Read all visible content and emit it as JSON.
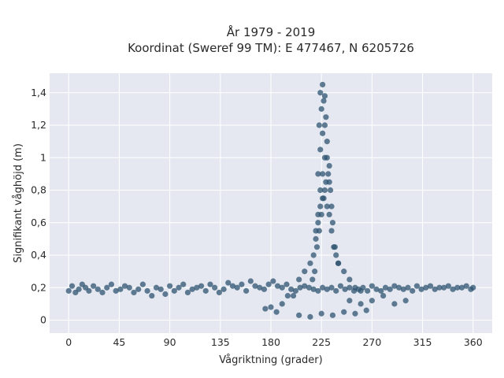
{
  "chart_data": {
    "type": "scatter",
    "title_lines": [
      "År 1979 - 2019",
      "Koordinat (Sweref 99 TM): E 477467, N 6205726"
    ],
    "xlabel": "Vågriktning (grader)",
    "ylabel": "Signifikant våghöjd (m)",
    "xlim": [
      -17,
      377
    ],
    "ylim": [
      -0.08,
      1.52
    ],
    "x_ticks": [
      0,
      45,
      90,
      135,
      180,
      225,
      270,
      315,
      360
    ],
    "x_tick_labels": [
      "0",
      "45",
      "90",
      "135",
      "180",
      "225",
      "270",
      "315",
      "360"
    ],
    "y_ticks": [
      0,
      0.2,
      0.4,
      0.6,
      0.8,
      1.0,
      1.2,
      1.4
    ],
    "y_tick_labels": [
      "0",
      "0,2",
      "0,4",
      "0,6",
      "0,8",
      "1",
      "1,2",
      "1,4"
    ],
    "grid": true,
    "colors": {
      "background": "#e5e8f1",
      "grid": "#ffffff",
      "marker": "#2e5470"
    },
    "series": [
      {
        "x": [
          0,
          3,
          6,
          9,
          12,
          15,
          18,
          22,
          26,
          30,
          34,
          38,
          42,
          46,
          50,
          54,
          58,
          62,
          66,
          70,
          74,
          78,
          82,
          86,
          90,
          94,
          98,
          102,
          106,
          110,
          114,
          118,
          122,
          126,
          130,
          134,
          138,
          142,
          146,
          150,
          154,
          158,
          162,
          166,
          170,
          174,
          178,
          182,
          186,
          190,
          194,
          198,
          202,
          206,
          210,
          214,
          218,
          222,
          226,
          230,
          234,
          238,
          242,
          246,
          250,
          254,
          258,
          262,
          266,
          270,
          274,
          278,
          282,
          286,
          290,
          294,
          298,
          302,
          306,
          310,
          314,
          318,
          322,
          326,
          330,
          334,
          338,
          342,
          346,
          350,
          354,
          358,
          360,
          215,
          218,
          220,
          222,
          224,
          226,
          228,
          230,
          232,
          234,
          236,
          238,
          240,
          217,
          219,
          221,
          223,
          225,
          227,
          229,
          231,
          233,
          235,
          237,
          220,
          222,
          224,
          226,
          228,
          230,
          232,
          234,
          222,
          224,
          226,
          228,
          230,
          232,
          223,
          225,
          227,
          229,
          224,
          226,
          228,
          200,
          205,
          210,
          240,
          245,
          250,
          255,
          260,
          190,
          195,
          250,
          260,
          270,
          280,
          175,
          180,
          185,
          290,
          300,
          205,
          215,
          225,
          235,
          245,
          255,
          265
        ],
        "y": [
          0.18,
          0.21,
          0.17,
          0.19,
          0.22,
          0.2,
          0.18,
          0.21,
          0.19,
          0.17,
          0.2,
          0.22,
          0.18,
          0.19,
          0.21,
          0.2,
          0.17,
          0.19,
          0.22,
          0.18,
          0.15,
          0.2,
          0.19,
          0.16,
          0.21,
          0.18,
          0.2,
          0.22,
          0.17,
          0.19,
          0.2,
          0.21,
          0.18,
          0.22,
          0.2,
          0.17,
          0.19,
          0.23,
          0.21,
          0.2,
          0.22,
          0.18,
          0.24,
          0.21,
          0.2,
          0.19,
          0.22,
          0.24,
          0.21,
          0.2,
          0.22,
          0.19,
          0.18,
          0.2,
          0.21,
          0.2,
          0.19,
          0.18,
          0.2,
          0.19,
          0.2,
          0.18,
          0.21,
          0.19,
          0.2,
          0.18,
          0.19,
          0.2,
          0.18,
          0.21,
          0.19,
          0.18,
          0.2,
          0.19,
          0.21,
          0.2,
          0.19,
          0.2,
          0.18,
          0.21,
          0.19,
          0.2,
          0.21,
          0.19,
          0.2,
          0.2,
          0.21,
          0.19,
          0.2,
          0.2,
          0.21,
          0.19,
          0.2,
          0.35,
          0.4,
          0.5,
          0.6,
          0.7,
          0.75,
          0.8,
          0.7,
          0.65,
          0.55,
          0.45,
          0.4,
          0.35,
          0.25,
          0.3,
          0.45,
          0.55,
          0.65,
          0.75,
          0.85,
          0.9,
          0.8,
          0.6,
          0.45,
          0.55,
          0.65,
          0.8,
          0.9,
          1.0,
          1.0,
          0.85,
          0.7,
          0.9,
          1.05,
          1.15,
          1.2,
          1.1,
          0.95,
          1.2,
          1.3,
          1.35,
          1.25,
          1.4,
          1.45,
          1.38,
          0.15,
          0.25,
          0.3,
          0.35,
          0.3,
          0.25,
          0.2,
          0.18,
          0.1,
          0.15,
          0.12,
          0.1,
          0.12,
          0.15,
          0.07,
          0.08,
          0.05,
          0.1,
          0.12,
          0.03,
          0.02,
          0.04,
          0.03,
          0.05,
          0.04,
          0.06
        ]
      }
    ]
  }
}
